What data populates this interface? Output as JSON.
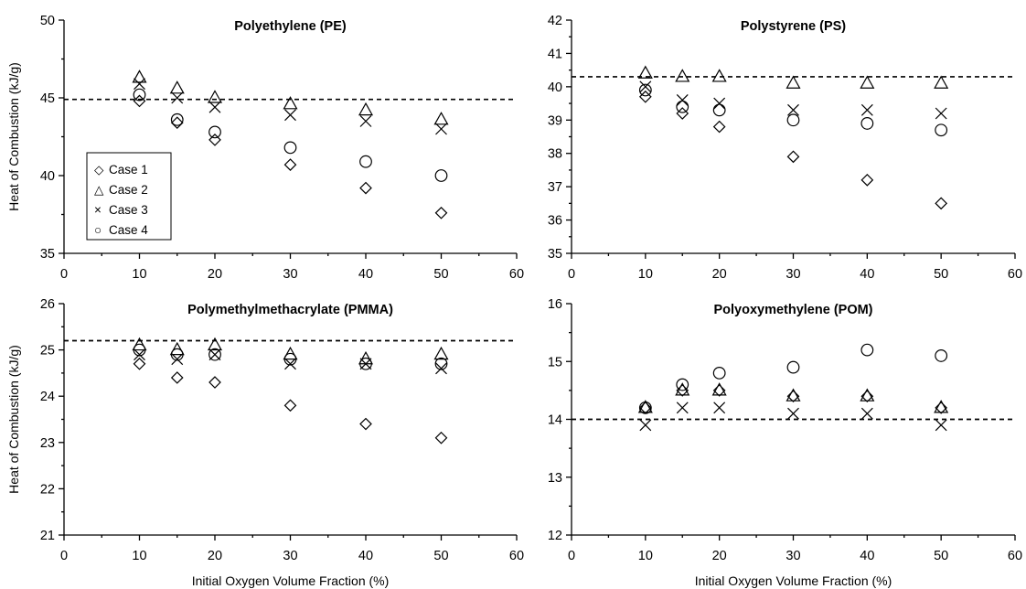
{
  "chart_data": [
    {
      "type": "scatter",
      "title": "Polyethylene (PE)",
      "xlabel": "",
      "ylabel": "Heat of Combustion (kJ/g)",
      "xlim": [
        0,
        60
      ],
      "ylim": [
        35,
        50
      ],
      "xticks": [
        "0",
        "10",
        "20",
        "30",
        "40",
        "50",
        "60"
      ],
      "yticks": [
        "35",
        "40",
        "45",
        "50"
      ],
      "ystep": 5,
      "reference_line": 44.9,
      "x": [
        10,
        15,
        20,
        30,
        40,
        50
      ],
      "series": [
        {
          "name": "Case 1",
          "marker": "diamond",
          "values": [
            44.8,
            43.4,
            42.3,
            40.7,
            39.2,
            37.6
          ]
        },
        {
          "name": "Case 2",
          "marker": "triangle",
          "values": [
            46.3,
            45.6,
            45.0,
            44.6,
            44.2,
            43.6
          ]
        },
        {
          "name": "Case 3",
          "marker": "x",
          "values": [
            45.9,
            45.0,
            44.4,
            43.9,
            43.5,
            43.0
          ]
        },
        {
          "name": "Case 4",
          "marker": "circle",
          "values": [
            45.2,
            43.6,
            42.8,
            41.8,
            40.9,
            40.0
          ]
        }
      ],
      "legend": {
        "position": "lower-left",
        "entries": [
          {
            "symbol": "◇",
            "label": "Case 1"
          },
          {
            "symbol": "△",
            "label": "Case 2"
          },
          {
            "symbol": "×",
            "label": "Case 3"
          },
          {
            "symbol": "○",
            "label": "Case 4"
          }
        ]
      }
    },
    {
      "type": "scatter",
      "title": "Polystyrene (PS)",
      "xlabel": "",
      "ylabel": "",
      "xlim": [
        0,
        60
      ],
      "ylim": [
        35,
        42
      ],
      "xticks": [
        "0",
        "10",
        "20",
        "30",
        "40",
        "50",
        "60"
      ],
      "yticks": [
        "35",
        "36",
        "37",
        "38",
        "39",
        "40",
        "41",
        "42"
      ],
      "ystep": 1,
      "reference_line": 40.3,
      "x": [
        10,
        15,
        20,
        30,
        40,
        50
      ],
      "series": [
        {
          "name": "Case 1",
          "marker": "diamond",
          "values": [
            39.7,
            39.2,
            38.8,
            37.9,
            37.2,
            36.5
          ]
        },
        {
          "name": "Case 2",
          "marker": "triangle",
          "values": [
            40.4,
            40.3,
            40.3,
            40.1,
            40.1,
            40.1
          ]
        },
        {
          "name": "Case 3",
          "marker": "x",
          "values": [
            40.0,
            39.6,
            39.5,
            39.3,
            39.3,
            39.2
          ]
        },
        {
          "name": "Case 4",
          "marker": "circle",
          "values": [
            39.9,
            39.4,
            39.3,
            39.0,
            38.9,
            38.7
          ]
        }
      ]
    },
    {
      "type": "scatter",
      "title": "Polymethylmethacrylate (PMMA)",
      "xlabel": "Initial Oxygen Volume Fraction (%)",
      "ylabel": "Heat of Combustion (kJ/g)",
      "xlim": [
        0,
        60
      ],
      "ylim": [
        21,
        26
      ],
      "xticks": [
        "0",
        "10",
        "20",
        "30",
        "40",
        "50",
        "60"
      ],
      "yticks": [
        "21",
        "22",
        "23",
        "24",
        "25",
        "26"
      ],
      "ystep": 1,
      "reference_line": 25.2,
      "x": [
        10,
        15,
        20,
        30,
        40,
        50
      ],
      "series": [
        {
          "name": "Case 1",
          "marker": "diamond",
          "values": [
            24.7,
            24.4,
            24.3,
            23.8,
            23.4,
            23.1
          ]
        },
        {
          "name": "Case 2",
          "marker": "triangle",
          "values": [
            25.1,
            25.0,
            25.1,
            24.9,
            24.8,
            24.9
          ]
        },
        {
          "name": "Case 3",
          "marker": "x",
          "values": [
            24.9,
            24.8,
            24.9,
            24.7,
            24.7,
            24.6
          ]
        },
        {
          "name": "Case 4",
          "marker": "circle",
          "values": [
            25.0,
            24.9,
            24.9,
            24.8,
            24.7,
            24.7
          ]
        }
      ]
    },
    {
      "type": "scatter",
      "title": "Polyoxymethylene (POM)",
      "xlabel": "Initial Oxygen Volume Fraction (%)",
      "ylabel": "",
      "xlim": [
        0,
        60
      ],
      "ylim": [
        12,
        16
      ],
      "xticks": [
        "0",
        "10",
        "20",
        "30",
        "40",
        "50",
        "60"
      ],
      "yticks": [
        "12",
        "13",
        "14",
        "15",
        "16"
      ],
      "ystep": 1,
      "reference_line": 14.0,
      "x": [
        10,
        15,
        20,
        30,
        40,
        50
      ],
      "series": [
        {
          "name": "Case 1",
          "marker": "diamond",
          "values": [
            14.2,
            14.5,
            14.5,
            14.4,
            14.4,
            14.2
          ]
        },
        {
          "name": "Case 2",
          "marker": "triangle",
          "values": [
            14.2,
            14.5,
            14.5,
            14.4,
            14.4,
            14.2
          ]
        },
        {
          "name": "Case 3",
          "marker": "x",
          "values": [
            13.9,
            14.2,
            14.2,
            14.1,
            14.1,
            13.9
          ]
        },
        {
          "name": "Case 4",
          "marker": "circle",
          "values": [
            14.2,
            14.6,
            14.8,
            14.9,
            15.2,
            15.1
          ]
        }
      ]
    }
  ]
}
